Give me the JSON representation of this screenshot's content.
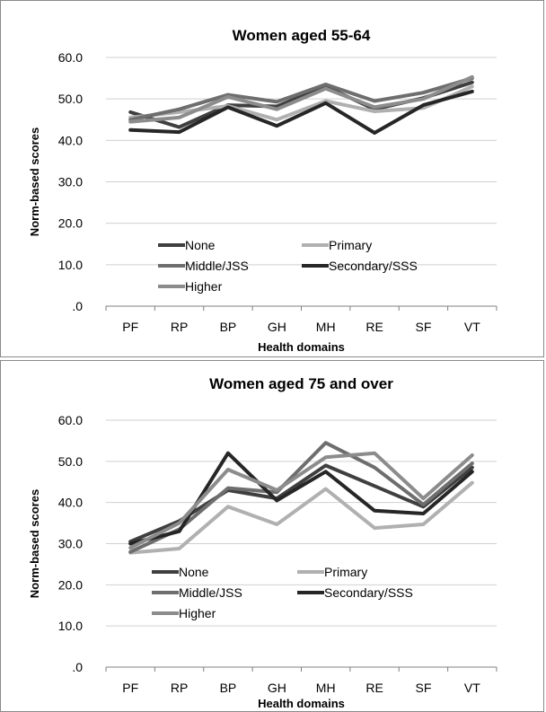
{
  "chart_data": [
    {
      "type": "line",
      "title": "Women aged 55-64",
      "xlabel": "Health domains",
      "ylabel": "Norm-based scores",
      "categories": [
        "PF",
        "RP",
        "BP",
        "GH",
        "MH",
        "RE",
        "SF",
        "VT"
      ],
      "ylim": [
        0,
        60
      ],
      "yticks": [
        ".0",
        "10.0",
        "20.0",
        "30.0",
        "40.0",
        "50.0",
        "60.0"
      ],
      "grid": true,
      "legend_position": "lower-center",
      "series": [
        {
          "name": "None",
          "color": "#3f3f3f",
          "values": [
            46.8,
            43.2,
            48.5,
            48.2,
            53.0,
            47.5,
            50.2,
            54.0
          ]
        },
        {
          "name": "Primary",
          "color": "#b0b0b0",
          "values": [
            45.5,
            46.8,
            48.3,
            45.0,
            49.5,
            47.0,
            47.8,
            53.0
          ]
        },
        {
          "name": "Middle/JSS",
          "color": "#6e6e6e",
          "values": [
            45.0,
            47.5,
            51.0,
            49.3,
            53.5,
            49.5,
            51.5,
            55.0
          ]
        },
        {
          "name": "Secondary/SSS",
          "color": "#262626",
          "values": [
            42.5,
            42.0,
            48.0,
            43.5,
            49.0,
            41.8,
            48.5,
            51.8
          ]
        },
        {
          "name": "Higher",
          "color": "#8c8c8c",
          "values": [
            44.5,
            45.5,
            50.5,
            47.5,
            52.5,
            48.0,
            50.0,
            55.3
          ]
        }
      ]
    },
    {
      "type": "line",
      "title": "Women aged 75 and over",
      "xlabel": "Health domains",
      "ylabel": "Norm-based scores",
      "categories": [
        "PF",
        "RP",
        "BP",
        "GH",
        "MH",
        "RE",
        "SF",
        "VT"
      ],
      "ylim": [
        0,
        60
      ],
      "yticks": [
        ".0",
        "10.0",
        "20.0",
        "30.0",
        "40.0",
        "50.0",
        "60.0"
      ],
      "grid": true,
      "legend_position": "lower-center",
      "series": [
        {
          "name": "None",
          "color": "#3f3f3f",
          "values": [
            30.5,
            35.5,
            43.0,
            41.0,
            49.0,
            44.0,
            39.0,
            48.5
          ]
        },
        {
          "name": "Primary",
          "color": "#b0b0b0",
          "values": [
            27.8,
            28.8,
            39.0,
            34.7,
            43.3,
            33.8,
            34.7,
            44.8
          ]
        },
        {
          "name": "Middle/JSS",
          "color": "#6e6e6e",
          "values": [
            28.0,
            33.5,
            43.5,
            42.5,
            54.5,
            48.5,
            39.5,
            49.5
          ]
        },
        {
          "name": "Secondary/SSS",
          "color": "#262626",
          "values": [
            30.0,
            33.0,
            52.0,
            40.5,
            47.5,
            38.0,
            37.3,
            47.5
          ]
        },
        {
          "name": "Higher",
          "color": "#8c8c8c",
          "values": [
            29.0,
            35.0,
            48.0,
            43.0,
            51.0,
            52.0,
            41.0,
            51.5
          ]
        }
      ]
    }
  ]
}
